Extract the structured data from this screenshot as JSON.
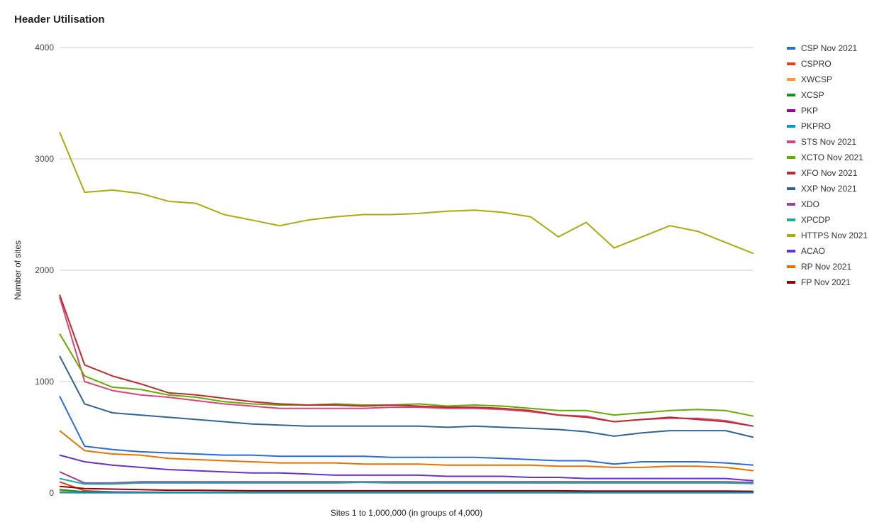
{
  "chart_data": {
    "type": "line",
    "title": "Header Utilisation",
    "xlabel": "Sites 1 to 1,000,000 (in groups of 4,000)",
    "ylabel": "Number of sites",
    "ylim": [
      0,
      4000
    ],
    "xlim": [
      1,
      250
    ],
    "yticks": [
      "0",
      "1000",
      "2000",
      "3000",
      "4000"
    ],
    "grid": true,
    "legend": "right",
    "x": [
      1,
      10,
      20,
      30,
      40,
      50,
      60,
      70,
      80,
      90,
      100,
      110,
      120,
      130,
      140,
      150,
      160,
      170,
      180,
      190,
      200,
      210,
      220,
      230,
      240,
      250
    ],
    "series": [
      {
        "name": "CSP Nov 2021",
        "color": "#2b6cd2",
        "values": [
          870,
          420,
          390,
          370,
          360,
          350,
          340,
          340,
          330,
          330,
          330,
          330,
          320,
          320,
          320,
          320,
          310,
          300,
          290,
          290,
          260,
          280,
          280,
          280,
          270,
          250
        ]
      },
      {
        "name": "CSPRO",
        "color": "#e3401c",
        "values": [
          100,
          20,
          10,
          8,
          6,
          5,
          5,
          5,
          5,
          5,
          5,
          5,
          5,
          5,
          5,
          5,
          5,
          5,
          5,
          5,
          5,
          5,
          5,
          5,
          5,
          5
        ]
      },
      {
        "name": "XWCSP",
        "color": "#ff9a2e",
        "values": [
          20,
          5,
          4,
          3,
          3,
          3,
          3,
          3,
          3,
          3,
          3,
          3,
          3,
          3,
          3,
          3,
          3,
          3,
          3,
          3,
          3,
          3,
          3,
          3,
          3,
          3
        ]
      },
      {
        "name": "XCSP",
        "color": "#109618",
        "values": [
          30,
          10,
          6,
          5,
          5,
          5,
          5,
          5,
          5,
          5,
          5,
          5,
          5,
          5,
          5,
          5,
          5,
          5,
          5,
          5,
          5,
          5,
          5,
          5,
          5,
          5
        ]
      },
      {
        "name": "PKP",
        "color": "#990099",
        "values": [
          5,
          4,
          4,
          4,
          4,
          4,
          4,
          4,
          4,
          4,
          4,
          4,
          4,
          4,
          4,
          4,
          4,
          4,
          4,
          4,
          4,
          4,
          4,
          4,
          4,
          4
        ]
      },
      {
        "name": "PKPRO",
        "color": "#0099c6",
        "values": [
          3,
          2,
          2,
          2,
          2,
          2,
          2,
          2,
          2,
          2,
          2,
          2,
          2,
          2,
          2,
          2,
          2,
          2,
          2,
          2,
          2,
          2,
          2,
          2,
          2,
          2
        ]
      },
      {
        "name": "STS Nov 2021",
        "color": "#dd4477",
        "values": [
          1760,
          1000,
          920,
          880,
          860,
          830,
          800,
          780,
          760,
          760,
          760,
          760,
          770,
          770,
          760,
          760,
          750,
          730,
          700,
          690,
          640,
          660,
          670,
          670,
          650,
          600
        ]
      },
      {
        "name": "XCTO Nov 2021",
        "color": "#66aa00",
        "values": [
          1430,
          1050,
          950,
          930,
          880,
          860,
          820,
          800,
          790,
          790,
          800,
          790,
          790,
          800,
          780,
          790,
          780,
          760,
          740,
          740,
          700,
          720,
          740,
          750,
          740,
          690
        ]
      },
      {
        "name": "XFO Nov 2021",
        "color": "#b82e2e",
        "values": [
          1780,
          1150,
          1050,
          980,
          900,
          880,
          850,
          820,
          800,
          790,
          790,
          780,
          790,
          780,
          770,
          770,
          760,
          740,
          700,
          680,
          640,
          660,
          680,
          660,
          640,
          600
        ]
      },
      {
        "name": "XXP Nov 2021",
        "color": "#316395",
        "values": [
          1230,
          800,
          720,
          700,
          680,
          660,
          640,
          620,
          610,
          600,
          600,
          600,
          600,
          600,
          590,
          600,
          590,
          580,
          570,
          550,
          510,
          540,
          560,
          560,
          560,
          500
        ]
      },
      {
        "name": "XDO",
        "color": "#994499",
        "values": [
          190,
          90,
          90,
          100,
          100,
          100,
          100,
          100,
          100,
          100,
          100,
          100,
          100,
          100,
          100,
          100,
          100,
          100,
          100,
          100,
          100,
          100,
          100,
          100,
          100,
          95
        ]
      },
      {
        "name": "XPCDP",
        "color": "#22aa99",
        "values": [
          130,
          80,
          80,
          90,
          90,
          90,
          90,
          90,
          90,
          90,
          90,
          95,
          90,
          90,
          90,
          90,
          90,
          90,
          90,
          90,
          90,
          90,
          90,
          90,
          90,
          85
        ]
      },
      {
        "name": "HTTPS Nov 2021",
        "color": "#aaaa11",
        "values": [
          3240,
          2700,
          2720,
          2690,
          2620,
          2600,
          2500,
          2450,
          2400,
          2450,
          2480,
          2500,
          2500,
          2510,
          2530,
          2540,
          2520,
          2480,
          2300,
          2430,
          2200,
          2300,
          2400,
          2350,
          2250,
          2150
        ]
      },
      {
        "name": "ACAO",
        "color": "#6633cc",
        "values": [
          340,
          280,
          250,
          230,
          210,
          200,
          190,
          180,
          180,
          170,
          160,
          160,
          160,
          160,
          150,
          150,
          150,
          140,
          140,
          130,
          130,
          130,
          130,
          130,
          130,
          110
        ]
      },
      {
        "name": "RP Nov 2021",
        "color": "#e67300",
        "values": [
          560,
          380,
          350,
          340,
          310,
          300,
          290,
          280,
          270,
          270,
          270,
          260,
          260,
          260,
          250,
          250,
          250,
          250,
          240,
          240,
          230,
          230,
          240,
          240,
          230,
          200
        ]
      },
      {
        "name": "FP Nov 2021",
        "color": "#8b0707",
        "values": [
          60,
          40,
          35,
          30,
          25,
          25,
          22,
          20,
          20,
          20,
          20,
          20,
          20,
          20,
          20,
          20,
          20,
          20,
          20,
          18,
          18,
          18,
          18,
          18,
          18,
          15
        ]
      }
    ]
  }
}
